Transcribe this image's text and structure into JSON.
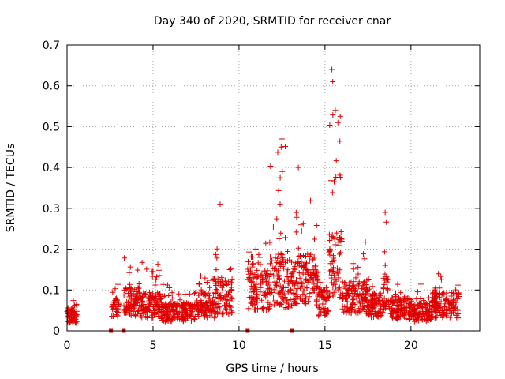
{
  "chart_data": {
    "type": "scatter",
    "title": "Day 340 of 2020, SRMTID for receiver cnar",
    "xlabel": "GPS time / hours",
    "ylabel": "SRMTID / TECUs",
    "xlim": [
      0,
      24
    ],
    "ylim": [
      0,
      0.7
    ],
    "xticks": [
      0,
      5,
      10,
      15,
      20
    ],
    "yticks": [
      0,
      0.1,
      0.2,
      0.3,
      0.4,
      0.5,
      0.6,
      0.7
    ],
    "grid": true,
    "marker": "plus",
    "series_color": "#e00000",
    "notable_points": [
      {
        "x": 15.4,
        "y": 0.64
      },
      {
        "x": 15.45,
        "y": 0.61
      },
      {
        "x": 15.6,
        "y": 0.54
      },
      {
        "x": 15.75,
        "y": 0.51
      },
      {
        "x": 12.5,
        "y": 0.47
      },
      {
        "x": 12.45,
        "y": 0.45
      },
      {
        "x": 13.45,
        "y": 0.4
      },
      {
        "x": 8.9,
        "y": 0.31
      },
      {
        "x": 18.5,
        "y": 0.29
      }
    ],
    "activity_profile": [
      {
        "x0": 0.0,
        "x1": 0.6,
        "base": 0.04,
        "amp": 0.04
      },
      {
        "x0": 2.6,
        "x1": 3.0,
        "base": 0.06,
        "amp": 0.06
      },
      {
        "x0": 3.3,
        "x1": 4.2,
        "base": 0.08,
        "amp": 0.08
      },
      {
        "x0": 4.2,
        "x1": 5.5,
        "base": 0.07,
        "amp": 0.12
      },
      {
        "x0": 5.5,
        "x1": 7.5,
        "base": 0.05,
        "amp": 0.06
      },
      {
        "x0": 7.5,
        "x1": 8.6,
        "base": 0.07,
        "amp": 0.07
      },
      {
        "x0": 8.6,
        "x1": 9.2,
        "base": 0.09,
        "amp": 0.13
      },
      {
        "x0": 9.2,
        "x1": 9.6,
        "base": 0.09,
        "amp": 0.07
      },
      {
        "x0": 10.5,
        "x1": 11.8,
        "base": 0.11,
        "amp": 0.12
      },
      {
        "x0": 11.8,
        "x1": 12.7,
        "base": 0.14,
        "amp": 0.3
      },
      {
        "x0": 12.7,
        "x1": 13.3,
        "base": 0.12,
        "amp": 0.1
      },
      {
        "x0": 13.3,
        "x1": 14.6,
        "base": 0.14,
        "amp": 0.16
      },
      {
        "x0": 14.6,
        "x1": 15.2,
        "base": 0.08,
        "amp": 0.06
      },
      {
        "x0": 15.2,
        "x1": 16.0,
        "base": 0.18,
        "amp": 0.3
      },
      {
        "x0": 16.0,
        "x1": 17.5,
        "base": 0.09,
        "amp": 0.12
      },
      {
        "x0": 17.5,
        "x1": 18.4,
        "base": 0.07,
        "amp": 0.07
      },
      {
        "x0": 18.4,
        "x1": 18.7,
        "base": 0.1,
        "amp": 0.14
      },
      {
        "x0": 18.7,
        "x1": 20.0,
        "base": 0.06,
        "amp": 0.06
      },
      {
        "x0": 20.0,
        "x1": 21.2,
        "base": 0.05,
        "amp": 0.05
      },
      {
        "x0": 21.2,
        "x1": 22.8,
        "base": 0.07,
        "amp": 0.06
      }
    ],
    "data_gap_markers_x": [
      2.55,
      3.3,
      10.5,
      13.1
    ]
  }
}
